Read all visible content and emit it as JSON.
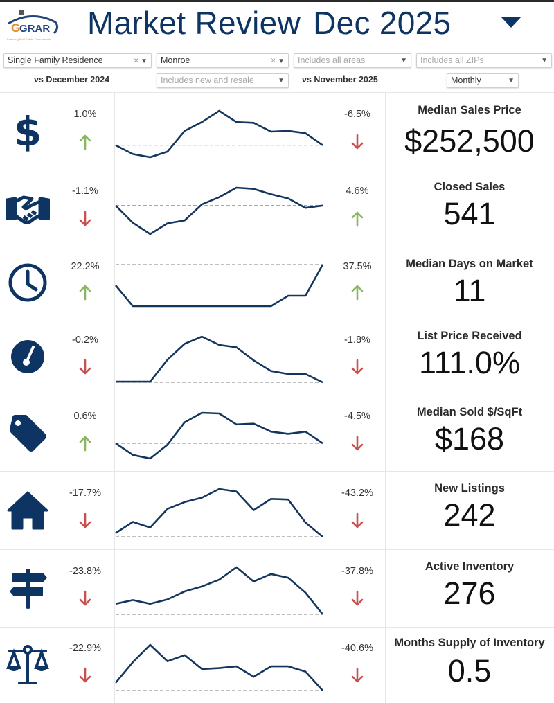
{
  "header": {
    "logo_text": "GRAR",
    "logo_tagline": "Powering Real Estate Professionals",
    "title": "Market Review",
    "period": "Dec 2025",
    "brand_color": "#0d3463"
  },
  "filters": {
    "property_type": "Single Family Residence",
    "city": "Monroe",
    "areas_placeholder": "Includes all areas",
    "zips_placeholder": "Includes all ZIPs",
    "construction_placeholder": "Includes new and resale",
    "frequency": "Monthly",
    "clear_symbol": "×",
    "caret_symbol": "▼"
  },
  "comparisons": {
    "year_over_year": "vs December 2024",
    "month_over_month": "vs November 2025"
  },
  "colors": {
    "up": "#8ab661",
    "down": "#c9504f",
    "line": "#14355e",
    "ref": "#9a9a9a"
  },
  "metrics": [
    {
      "name": "Median Sales Price",
      "value": "$252,500",
      "icon": "dollar-icon",
      "yoy": "1.0%",
      "yoy_dir": "up",
      "mom": "-6.5%",
      "mom_dir": "down"
    },
    {
      "name": "Closed Sales",
      "value": "541",
      "icon": "handshake-icon",
      "yoy": "-1.1%",
      "yoy_dir": "down",
      "mom": "4.6%",
      "mom_dir": "up"
    },
    {
      "name": "Median Days on Market",
      "value": "11",
      "icon": "clock-icon",
      "yoy": "22.2%",
      "yoy_dir": "up",
      "mom": "37.5%",
      "mom_dir": "up"
    },
    {
      "name": "List Price Received",
      "value": "111.0%",
      "icon": "gauge-icon",
      "yoy": "-0.2%",
      "yoy_dir": "down",
      "mom": "-1.8%",
      "mom_dir": "down"
    },
    {
      "name": "Median Sold $/SqFt",
      "value": "$168",
      "icon": "price-tag-icon",
      "yoy": "0.6%",
      "yoy_dir": "up",
      "mom": "-4.5%",
      "mom_dir": "down"
    },
    {
      "name": "New Listings",
      "value": "242",
      "icon": "house-icon",
      "yoy": "-17.7%",
      "yoy_dir": "down",
      "mom": "-43.2%",
      "mom_dir": "down"
    },
    {
      "name": "Active Inventory",
      "value": "276",
      "icon": "signpost-icon",
      "yoy": "-23.8%",
      "yoy_dir": "down",
      "mom": "-37.8%",
      "mom_dir": "down"
    },
    {
      "name": "Months Supply of Inventory",
      "value": "0.5",
      "icon": "scales-icon",
      "yoy": "-22.9%",
      "yoy_dir": "down",
      "mom": "-40.6%",
      "mom_dir": "down"
    }
  ],
  "chart_data": [
    {
      "type": "line",
      "title": "Median Sales Price trend (13 months)",
      "values": [
        15,
        4,
        0,
        7,
        33,
        44,
        58,
        44,
        43,
        32,
        33,
        30,
        15
      ],
      "reference": 15
    },
    {
      "type": "line",
      "title": "Closed Sales trend (13 months)",
      "values": [
        48,
        19,
        0,
        18,
        23,
        50,
        62,
        78,
        76,
        67,
        60,
        44,
        48
      ],
      "reference": 48
    },
    {
      "type": "line",
      "title": "Median Days on Market trend (13 months)",
      "values": [
        34,
        0,
        0,
        0,
        0,
        0,
        0,
        0,
        0,
        0,
        17,
        17,
        68
      ],
      "reference": 68
    },
    {
      "type": "line",
      "title": "List Price Received trend (13 months)",
      "values": [
        1,
        1,
        1,
        38,
        65,
        77,
        63,
        59,
        37,
        19,
        14,
        14,
        0
      ],
      "reference": 0
    },
    {
      "type": "line",
      "title": "Median Sold $/SqFt trend (13 months)",
      "values": [
        21,
        5,
        0,
        19,
        50,
        63,
        62,
        47,
        48,
        37,
        34,
        37,
        21
      ],
      "reference": 21
    },
    {
      "type": "line",
      "title": "New Listings trend (13 months)",
      "values": [
        6,
        24,
        15,
        45,
        56,
        63,
        77,
        73,
        43,
        61,
        60,
        23,
        0
      ],
      "reference": 0
    },
    {
      "type": "line",
      "title": "Active Inventory trend (13 months)",
      "values": [
        17,
        23,
        17,
        24,
        37,
        45,
        56,
        76,
        53,
        65,
        59,
        35,
        0
      ],
      "reference": 0
    },
    {
      "type": "line",
      "title": "Months Supply of Inventory trend (13 months)",
      "values": [
        9,
        33,
        53,
        34,
        41,
        25,
        26,
        28,
        16,
        28,
        28,
        22,
        0
      ],
      "reference": 0
    }
  ]
}
